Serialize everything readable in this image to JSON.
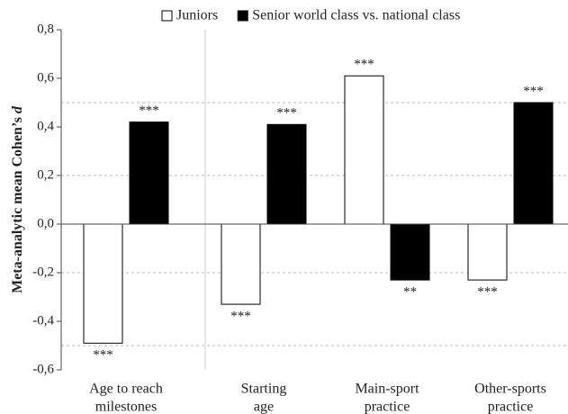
{
  "chart_data": {
    "type": "bar",
    "ylabel": "Meta-analytic mean Cohen’s",
    "ylabel_symbol": "d",
    "categories": [
      [
        "Age to reach",
        "milestones"
      ],
      [
        "Starting",
        "age"
      ],
      [
        "Main-sport",
        "practice"
      ],
      [
        "Other-sports",
        "practice"
      ]
    ],
    "series": [
      {
        "name": "Juniors",
        "color": "#ffffff",
        "values": [
          -0.49,
          -0.33,
          0.61,
          -0.23
        ],
        "annotations": [
          "***",
          "***",
          "***",
          "***"
        ]
      },
      {
        "name": "Senior world class vs. national class",
        "color": "#000000",
        "values": [
          0.42,
          0.41,
          -0.23,
          0.5
        ],
        "annotations": [
          "***",
          "***",
          "**",
          "***"
        ]
      }
    ],
    "ylim": [
      -0.6,
      0.8
    ],
    "yticks": [
      {
        "value": -0.6,
        "label": "-0,6"
      },
      {
        "value": -0.4,
        "label": "-0,4"
      },
      {
        "value": -0.2,
        "label": "-0,2"
      },
      {
        "value": 0,
        "label": "0,0"
      },
      {
        "value": 0.2,
        "label": "0,2"
      },
      {
        "value": 0.4,
        "label": "0,4"
      },
      {
        "value": 0.6,
        "label": "0,6"
      },
      {
        "value": 0.8,
        "label": "0,8"
      }
    ],
    "grid_lines": [
      -0.5,
      -0.2,
      0.2,
      0.5
    ],
    "legend": "top"
  }
}
